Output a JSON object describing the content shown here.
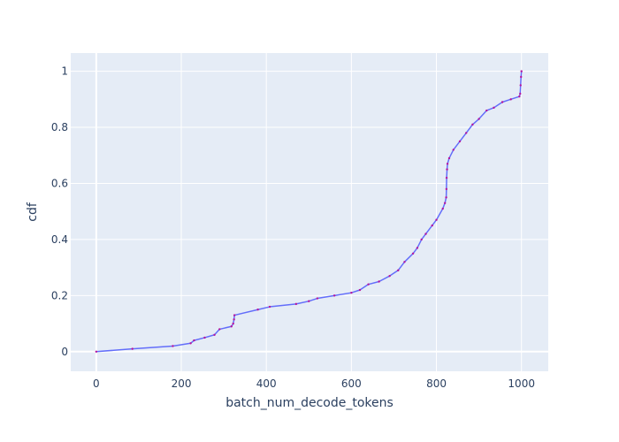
{
  "chart_data": {
    "type": "line",
    "title": "",
    "xlabel": "batch_num_decode_tokens",
    "ylabel": "cdf",
    "xlim": [
      -60,
      1063
    ],
    "ylim": [
      -0.07,
      1.065
    ],
    "x_ticks": [
      0,
      200,
      400,
      600,
      800,
      1000
    ],
    "x_tick_labels": [
      "0",
      "200",
      "400",
      "600",
      "800",
      "1000"
    ],
    "y_ticks": [
      0,
      0.2,
      0.4,
      0.6,
      0.8,
      1
    ],
    "y_tick_labels": [
      "0",
      "0.2",
      "0.4",
      "0.6",
      "0.8",
      "1"
    ],
    "grid": true,
    "legend": "none",
    "colors": {
      "plot_background": "#e5ecf6",
      "grid": "#ffffff",
      "line": "#636efa",
      "marker": "#b5179e",
      "text": "#2a3f5f"
    },
    "series": [
      {
        "x": [
          0,
          85,
          180,
          222,
          230,
          255,
          278,
          290,
          318,
          322,
          324,
          325,
          380,
          408,
          470,
          500,
          520,
          560,
          600,
          620,
          640,
          665,
          690,
          710,
          725,
          745,
          755,
          765,
          775,
          790,
          800,
          815,
          820,
          823,
          823.5,
          824,
          825,
          826,
          830,
          840,
          855,
          870,
          885,
          900,
          918,
          935,
          955,
          975,
          995,
          997,
          998,
          999,
          1000
        ],
        "y": [
          0,
          0.01,
          0.02,
          0.03,
          0.04,
          0.05,
          0.06,
          0.08,
          0.09,
          0.1,
          0.115,
          0.13,
          0.15,
          0.16,
          0.17,
          0.18,
          0.19,
          0.2,
          0.21,
          0.22,
          0.24,
          0.25,
          0.27,
          0.29,
          0.32,
          0.35,
          0.37,
          0.4,
          0.42,
          0.45,
          0.47,
          0.51,
          0.53,
          0.55,
          0.58,
          0.62,
          0.65,
          0.67,
          0.69,
          0.72,
          0.75,
          0.78,
          0.81,
          0.83,
          0.86,
          0.87,
          0.89,
          0.9,
          0.91,
          0.92,
          0.95,
          0.98,
          1.0
        ]
      }
    ]
  }
}
